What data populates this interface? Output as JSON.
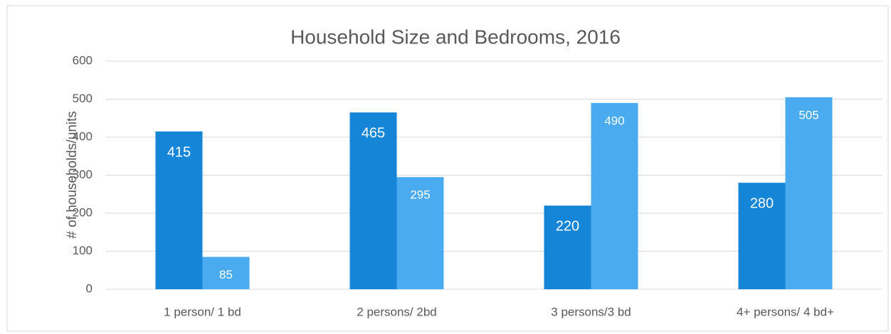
{
  "chart_data": {
    "type": "bar",
    "title": "Household Size and Bedrooms, 2016",
    "y_label": "# of households/units",
    "categories": [
      "1 person/ 1 bd",
      "2 persons/ 2bd",
      "3 persons/3 bd",
      "4+ persons/ 4 bd+"
    ],
    "series": [
      {
        "color": "#1585d8",
        "values": [
          415,
          465,
          220,
          280
        ]
      },
      {
        "color": "#4aabf0",
        "values": [
          85,
          295,
          490,
          505
        ]
      }
    ],
    "ylim": [
      0,
      600
    ],
    "yticks": [
      0,
      100,
      200,
      300,
      400,
      500,
      600
    ],
    "grid": true
  }
}
